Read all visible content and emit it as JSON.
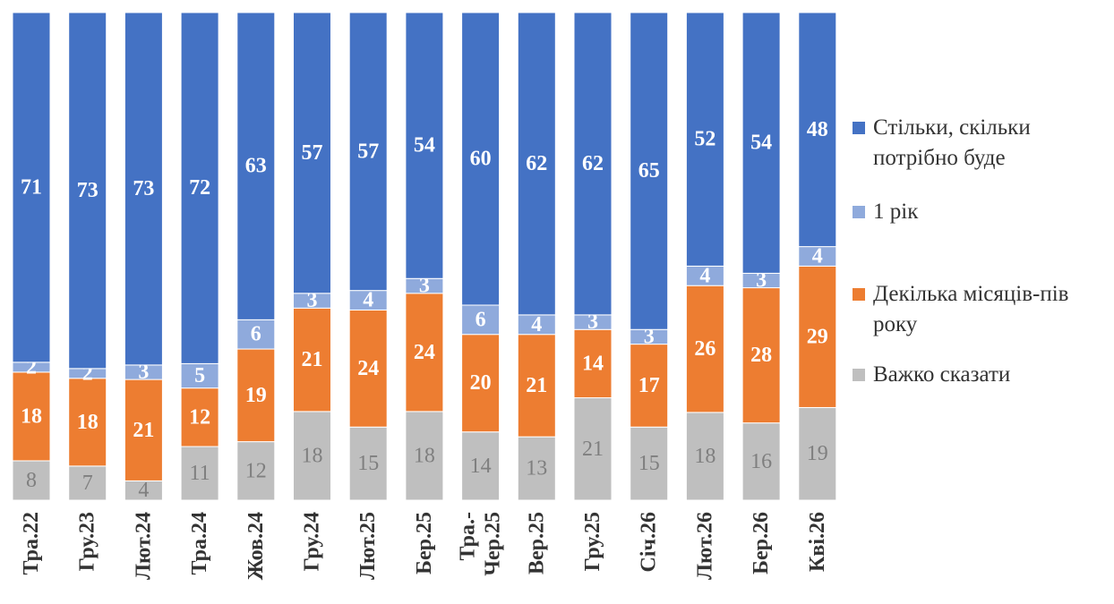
{
  "chart_data": {
    "type": "bar",
    "stacked": true,
    "percent": true,
    "categories": [
      "Тра.22",
      "Гру.23",
      "Лют.24",
      "Тра.24",
      "Жов.24",
      "Гру.24",
      "Лют.25",
      "Бер.25",
      "Тра.-Чер.25",
      "Вер.25",
      "Гру.25",
      "Січ.26",
      "Лют.26",
      "Бер.26",
      "Кві.26"
    ],
    "category_lines": [
      [
        "Тра.22"
      ],
      [
        "Гру.23"
      ],
      [
        "Лют.24"
      ],
      [
        "Тра.24"
      ],
      [
        "Жов.24"
      ],
      [
        "Гру.24"
      ],
      [
        "Лют.25"
      ],
      [
        "Бер.25"
      ],
      [
        "Тра.-",
        "Чер.25"
      ],
      [
        "Вер.25"
      ],
      [
        "Гру.25"
      ],
      [
        "Січ.26"
      ],
      [
        "Лют.26"
      ],
      [
        "Бер.26"
      ],
      [
        "Кві.26"
      ]
    ],
    "series": [
      {
        "name": "Важко сказати",
        "color": "#bfbfbf",
        "values": [
          8,
          7,
          4,
          11,
          12,
          18,
          15,
          18,
          14,
          13,
          21,
          15,
          18,
          16,
          19
        ]
      },
      {
        "name": "Декілька місяців-пів року",
        "color": "#ed7d31",
        "values": [
          18,
          18,
          21,
          12,
          19,
          21,
          24,
          24,
          20,
          21,
          14,
          17,
          26,
          28,
          29
        ]
      },
      {
        "name": "1 рік",
        "color": "#8faadc",
        "values": [
          2,
          2,
          3,
          5,
          6,
          3,
          4,
          3,
          6,
          4,
          3,
          3,
          4,
          3,
          4
        ]
      },
      {
        "name": "Стільки, скільки потрібно буде",
        "color": "#4472c4",
        "values": [
          71,
          73,
          73,
          72,
          63,
          57,
          57,
          54,
          60,
          62,
          62,
          65,
          52,
          54,
          48
        ]
      }
    ],
    "legend_position": "right",
    "legend": [
      {
        "lines": [
          "Стільки, скільки",
          "потрібно буде"
        ],
        "color": "#4472c4"
      },
      {
        "lines": [
          "1 рік"
        ],
        "color": "#8faadc"
      },
      {
        "lines": [
          "Декілька місяців-пів",
          "року"
        ],
        "color": "#ed7d31"
      },
      {
        "lines": [
          "Важко сказати"
        ],
        "color": "#bfbfbf"
      }
    ],
    "ylim": [
      0,
      100
    ],
    "grid": false
  }
}
